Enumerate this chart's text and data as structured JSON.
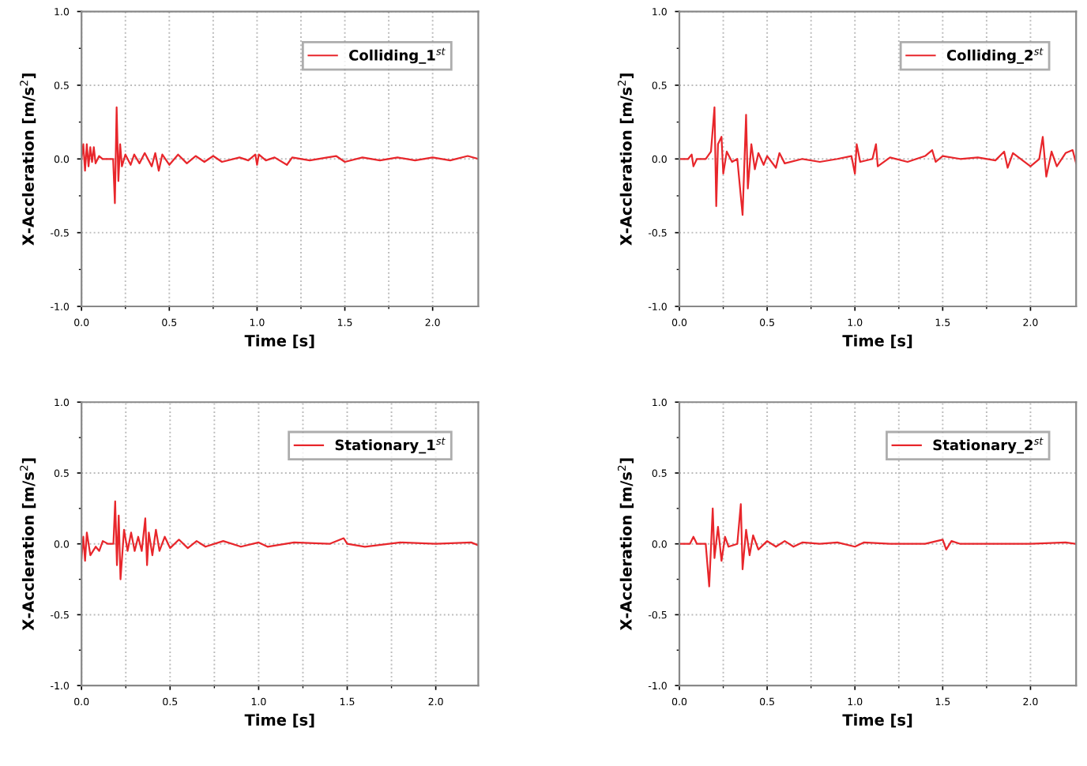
{
  "chart_data": [
    {
      "type": "line",
      "xlabel": "Time [s]",
      "ylabel": "X-Accleration [m/s$^{2}$]",
      "xlim": [
        0,
        2.26
      ],
      "ylim": [
        -1,
        1
      ],
      "xticks": [
        {
          "value": 0,
          "label": "0.0"
        },
        {
          "value": 0.5,
          "label": "0.5"
        },
        {
          "value": 1,
          "label": "1.0"
        },
        {
          "value": 1.5,
          "label": "1.5"
        },
        {
          "value": 2,
          "label": "2.0"
        }
      ],
      "yticks": [
        {
          "value": -1,
          "label": "-1.0"
        },
        {
          "value": -0.5,
          "label": "-0.5"
        },
        {
          "value": 0,
          "label": "0.0"
        },
        {
          "value": 0.5,
          "label": "0.5"
        },
        {
          "value": 1,
          "label": "1.0"
        }
      ],
      "grid": true,
      "legend": "top right",
      "series": [
        {
          "name": "Colliding_1$^{st}$",
          "color": "#e8262b",
          "x": [
            0,
            0.01,
            0.02,
            0.03,
            0.04,
            0.05,
            0.06,
            0.07,
            0.08,
            0.1,
            0.12,
            0.18,
            0.19,
            0.2,
            0.21,
            0.22,
            0.23,
            0.25,
            0.28,
            0.3,
            0.33,
            0.36,
            0.4,
            0.42,
            0.44,
            0.46,
            0.5,
            0.55,
            0.6,
            0.65,
            0.7,
            0.75,
            0.8,
            0.9,
            0.95,
            0.99,
            1.0,
            1.01,
            1.05,
            1.1,
            1.17,
            1.2,
            1.3,
            1.4,
            1.45,
            1.5,
            1.6,
            1.7,
            1.8,
            1.9,
            2.0,
            2.1,
            2.2,
            2.26
          ],
          "values": [
            0,
            0.1,
            -0.08,
            0.1,
            -0.05,
            0.08,
            -0.02,
            0.08,
            -0.03,
            0.02,
            0,
            0,
            -0.3,
            0.35,
            -0.15,
            0.1,
            -0.05,
            0.03,
            -0.04,
            0.03,
            -0.03,
            0.04,
            -0.05,
            0.04,
            -0.08,
            0.03,
            -0.04,
            0.03,
            -0.03,
            0.02,
            -0.02,
            0.02,
            -0.02,
            0.01,
            -0.01,
            0.03,
            -0.04,
            0.03,
            -0.01,
            0.01,
            -0.04,
            0.01,
            -0.01,
            0.01,
            0.02,
            -0.02,
            0.01,
            -0.01,
            0.01,
            -0.01,
            0.01,
            -0.01,
            0.02,
            0
          ]
        }
      ]
    },
    {
      "type": "line",
      "xlabel": "Time [s]",
      "ylabel": "X-Accleration [m/s$^{2}$]",
      "xlim": [
        0,
        2.26
      ],
      "ylim": [
        -1,
        1
      ],
      "xticks": [
        {
          "value": 0,
          "label": "0.0"
        },
        {
          "value": 0.5,
          "label": "0.5"
        },
        {
          "value": 1,
          "label": "1.0"
        },
        {
          "value": 1.5,
          "label": "1.5"
        },
        {
          "value": 2,
          "label": "2.0"
        }
      ],
      "yticks": [
        {
          "value": -1,
          "label": "-1.0"
        },
        {
          "value": -0.5,
          "label": "-0.5"
        },
        {
          "value": 0,
          "label": "0.0"
        },
        {
          "value": 0.5,
          "label": "0.5"
        },
        {
          "value": 1,
          "label": "1.0"
        }
      ],
      "grid": true,
      "legend": "top right",
      "series": [
        {
          "name": "Colliding_2$^{st}$",
          "color": "#e8262b",
          "x": [
            0,
            0.05,
            0.07,
            0.08,
            0.1,
            0.15,
            0.18,
            0.2,
            0.21,
            0.22,
            0.24,
            0.25,
            0.27,
            0.3,
            0.33,
            0.36,
            0.38,
            0.39,
            0.41,
            0.43,
            0.45,
            0.48,
            0.5,
            0.55,
            0.57,
            0.6,
            0.7,
            0.8,
            0.9,
            0.98,
            1.0,
            1.01,
            1.03,
            1.1,
            1.12,
            1.13,
            1.2,
            1.3,
            1.4,
            1.44,
            1.46,
            1.5,
            1.6,
            1.7,
            1.8,
            1.85,
            1.87,
            1.9,
            2.0,
            2.05,
            2.07,
            2.09,
            2.12,
            2.15,
            2.2,
            2.24,
            2.26
          ],
          "values": [
            0,
            0,
            0.03,
            -0.05,
            0,
            0,
            0.05,
            0.35,
            -0.32,
            0.1,
            0.15,
            -0.1,
            0.05,
            -0.02,
            0,
            -0.38,
            0.3,
            -0.2,
            0.1,
            -0.07,
            0.04,
            -0.04,
            0.02,
            -0.06,
            0.04,
            -0.03,
            0,
            -0.02,
            0,
            0.02,
            -0.1,
            0.1,
            -0.02,
            0,
            0.1,
            -0.05,
            0.01,
            -0.02,
            0.02,
            0.06,
            -0.02,
            0.02,
            0,
            0.01,
            -0.01,
            0.05,
            -0.06,
            0.04,
            -0.05,
            0,
            0.15,
            -0.12,
            0.05,
            -0.05,
            0.04,
            0.06,
            -0.03
          ]
        }
      ]
    },
    {
      "type": "line",
      "xlabel": "Time [s]",
      "ylabel": "X-Accleration [m/s$^{2}$]",
      "xlim": [
        0,
        2.24
      ],
      "ylim": [
        -1,
        1
      ],
      "xticks": [
        {
          "value": 0,
          "label": "0.0"
        },
        {
          "value": 0.5,
          "label": "0.5"
        },
        {
          "value": 1,
          "label": "1.0"
        },
        {
          "value": 1.5,
          "label": "1.5"
        },
        {
          "value": 2,
          "label": "2.0"
        }
      ],
      "yticks": [
        {
          "value": -1,
          "label": "-1.0"
        },
        {
          "value": -0.5,
          "label": "-0.5"
        },
        {
          "value": 0,
          "label": "0.0"
        },
        {
          "value": 0.5,
          "label": "0.5"
        },
        {
          "value": 1,
          "label": "1.0"
        }
      ],
      "grid": true,
      "legend": "top right",
      "series": [
        {
          "name": "Stationary_1$^{st}$",
          "color": "#e8262b",
          "x": [
            0,
            0.01,
            0.02,
            0.03,
            0.05,
            0.08,
            0.1,
            0.12,
            0.15,
            0.18,
            0.19,
            0.2,
            0.21,
            0.22,
            0.24,
            0.26,
            0.28,
            0.3,
            0.32,
            0.34,
            0.36,
            0.37,
            0.38,
            0.4,
            0.42,
            0.44,
            0.47,
            0.5,
            0.55,
            0.6,
            0.65,
            0.7,
            0.8,
            0.9,
            1.0,
            1.05,
            1.2,
            1.4,
            1.48,
            1.5,
            1.6,
            1.8,
            2.0,
            2.2,
            2.24
          ],
          "values": [
            -0.1,
            0.05,
            -0.12,
            0.08,
            -0.08,
            -0.02,
            -0.05,
            0.02,
            0,
            0,
            0.3,
            -0.15,
            0.2,
            -0.25,
            0.1,
            -0.05,
            0.08,
            -0.05,
            0.05,
            -0.05,
            0.18,
            -0.15,
            0.08,
            -0.08,
            0.1,
            -0.05,
            0.05,
            -0.03,
            0.03,
            -0.03,
            0.02,
            -0.02,
            0.02,
            -0.02,
            0.01,
            -0.02,
            0.01,
            0,
            0.04,
            0,
            -0.02,
            0.01,
            0,
            0.01,
            -0.01
          ]
        }
      ]
    },
    {
      "type": "line",
      "xlabel": "Time [s]",
      "ylabel": "X-Accleration [m/s$^{2}$]",
      "xlim": [
        0,
        2.26
      ],
      "ylim": [
        -1,
        1
      ],
      "xticks": [
        {
          "value": 0,
          "label": "0.0"
        },
        {
          "value": 0.5,
          "label": "0.5"
        },
        {
          "value": 1,
          "label": "1.0"
        },
        {
          "value": 1.5,
          "label": "1.5"
        },
        {
          "value": 2,
          "label": "2.0"
        }
      ],
      "yticks": [
        {
          "value": -1,
          "label": "-1.0"
        },
        {
          "value": -0.5,
          "label": "-0.5"
        },
        {
          "value": 0,
          "label": "0.0"
        },
        {
          "value": 0.5,
          "label": "0.5"
        },
        {
          "value": 1,
          "label": "1.0"
        }
      ],
      "grid": true,
      "legend": "top right",
      "series": [
        {
          "name": "Stationary_2$^{st}$",
          "color": "#e8262b",
          "x": [
            0,
            0.06,
            0.08,
            0.1,
            0.15,
            0.17,
            0.19,
            0.2,
            0.22,
            0.24,
            0.26,
            0.28,
            0.33,
            0.35,
            0.36,
            0.38,
            0.4,
            0.42,
            0.45,
            0.5,
            0.55,
            0.6,
            0.65,
            0.7,
            0.8,
            0.9,
            1.0,
            1.05,
            1.2,
            1.4,
            1.5,
            1.52,
            1.55,
            1.6,
            1.8,
            2.0,
            2.2,
            2.26
          ],
          "values": [
            0,
            0,
            0.05,
            0,
            0,
            -0.3,
            0.25,
            -0.1,
            0.12,
            -0.12,
            0.05,
            -0.02,
            0,
            0.28,
            -0.18,
            0.1,
            -0.08,
            0.06,
            -0.04,
            0.02,
            -0.02,
            0.02,
            -0.02,
            0.01,
            0,
            0.01,
            -0.02,
            0.01,
            0,
            0,
            0.03,
            -0.04,
            0.02,
            0,
            0,
            0,
            0.01,
            0
          ]
        }
      ]
    }
  ]
}
